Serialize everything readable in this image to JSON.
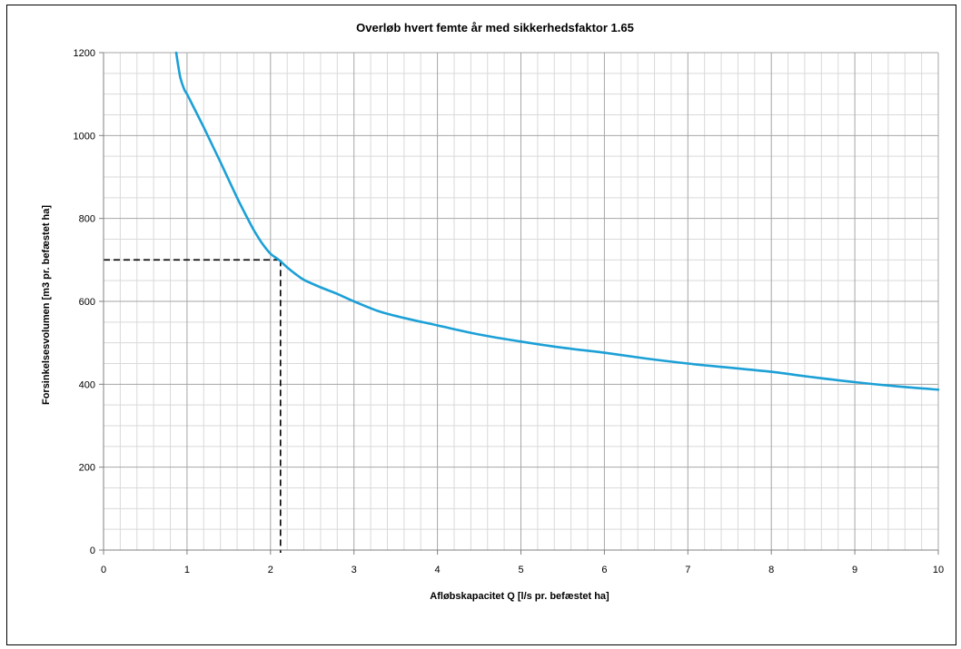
{
  "chart_data": {
    "type": "line",
    "title": "Overløb hvert femte år med sikkerhedsfaktor 1.65",
    "xlabel": "Afløbskapacitet Q [l/s pr. befæstet ha]",
    "ylabel": "Forsinkelsesvolumen [m3 pr. befæstet ha]",
    "xlim": [
      0,
      10
    ],
    "ylim": [
      0,
      1200
    ],
    "xticks": [
      "0",
      "1",
      "2",
      "3",
      "4",
      "5",
      "6",
      "7",
      "8",
      "9",
      "10"
    ],
    "yticks": [
      "0",
      "200",
      "400",
      "600",
      "800",
      "1000",
      "1200"
    ],
    "grid": true,
    "legend": "none",
    "series": [
      {
        "color": "#1ca0d6",
        "x": [
          0.87,
          0.92,
          0.97,
          1.0,
          1.1,
          1.2,
          1.3,
          1.4,
          1.5,
          1.6,
          1.7,
          1.8,
          1.9,
          2.0,
          2.1,
          2.2,
          2.3,
          2.4,
          2.6,
          2.8,
          3.0,
          3.3,
          3.6,
          4.0,
          4.5,
          5.0,
          5.5,
          6.0,
          6.5,
          7.0,
          7.5,
          8.0,
          8.5,
          9.0,
          9.5,
          10.0
        ],
        "y": [
          1200,
          1140,
          1110,
          1100,
          1060,
          1020,
          978,
          936,
          893,
          850,
          810,
          772,
          740,
          715,
          700,
          682,
          666,
          652,
          634,
          618,
          600,
          576,
          560,
          542,
          520,
          503,
          488,
          476,
          462,
          450,
          440,
          430,
          417,
          405,
          395,
          387
        ]
      }
    ],
    "reference_lines": {
      "color": "#000000",
      "x": 2.12,
      "y": 700
    }
  }
}
